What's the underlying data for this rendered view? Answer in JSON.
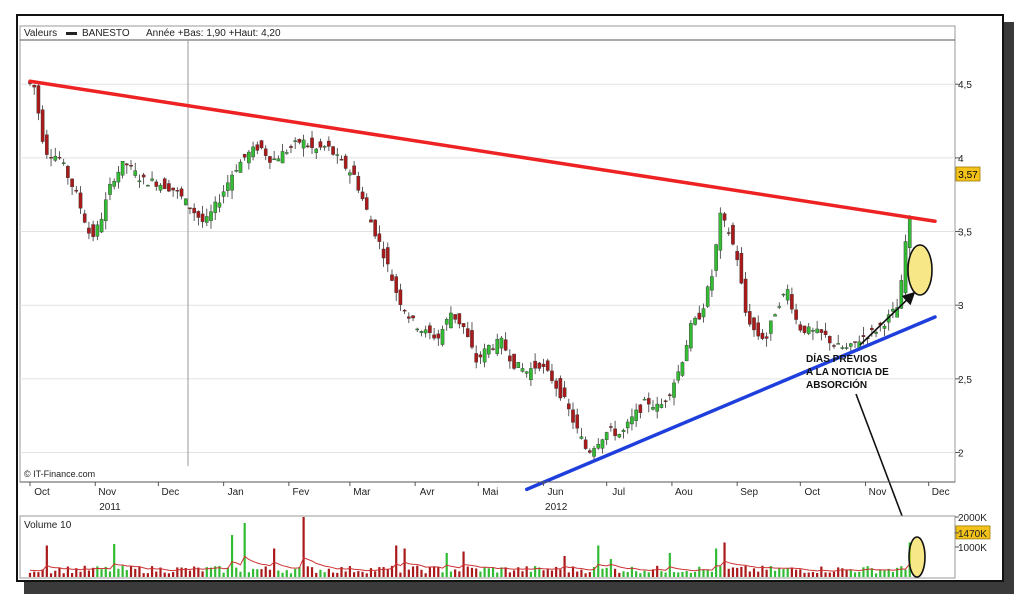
{
  "header": {
    "series_label": "Valeurs",
    "ticker": "BANESTO",
    "range_text": "Année +Bas: 1,90 +Haut: 4,20"
  },
  "credit": "© IT-Finance.com",
  "last_price_label": "3,57",
  "annotation": {
    "lines": [
      "DÍAS PREVIOS",
      "A LA NOTICIA DE",
      "ABSORCIÓN"
    ]
  },
  "volume_panel": {
    "title": "Volume 10",
    "axis_labels": [
      "2000K",
      "1470K",
      "1000K"
    ]
  },
  "colors": {
    "up": "#33bb33",
    "down": "#aa1a1a",
    "resistance": "#ee2222",
    "support": "#1f3fdd",
    "highlight": "#f2c21b",
    "volume_avg": "#cc3333",
    "grid": "#e2e2e2"
  },
  "chart_data": {
    "type": "candlestick",
    "title": "",
    "price_axis": {
      "ylim": [
        1.8,
        4.8
      ],
      "ticks": [
        "2",
        "2,5",
        "3",
        "3,5",
        "4",
        "4,5"
      ]
    },
    "month_labels": [
      "Oct",
      "Nov",
      "Dec",
      "Jan",
      "Fev",
      "Mar",
      "Avr",
      "Mai",
      "Jun",
      "Jul",
      "Aou",
      "Sep",
      "Oct",
      "Nov",
      "Dec"
    ],
    "year_labels": [
      "2011",
      "2012"
    ],
    "price_path": [
      [
        0,
        4.52
      ],
      [
        4,
        4.48
      ],
      [
        9,
        4.05
      ],
      [
        16,
        4.0
      ],
      [
        24,
        3.75
      ],
      [
        31,
        3.45
      ],
      [
        35,
        3.55
      ],
      [
        41,
        3.85
      ],
      [
        47,
        3.97
      ],
      [
        55,
        3.85
      ],
      [
        63,
        3.83
      ],
      [
        71,
        3.78
      ],
      [
        79,
        3.65
      ],
      [
        85,
        3.55
      ],
      [
        92,
        3.72
      ],
      [
        99,
        3.92
      ],
      [
        105,
        4.02
      ],
      [
        111,
        4.08
      ],
      [
        117,
        3.98
      ],
      [
        124,
        4.05
      ],
      [
        131,
        4.12
      ],
      [
        137,
        4.05
      ],
      [
        143,
        4.08
      ],
      [
        149,
        3.98
      ],
      [
        156,
        3.88
      ],
      [
        163,
        3.6
      ],
      [
        170,
        3.35
      ],
      [
        177,
        3.05
      ],
      [
        183,
        2.9
      ],
      [
        189,
        2.82
      ],
      [
        196,
        2.78
      ],
      [
        202,
        2.95
      ],
      [
        208,
        2.85
      ],
      [
        214,
        2.62
      ],
      [
        220,
        2.72
      ],
      [
        226,
        2.75
      ],
      [
        232,
        2.6
      ],
      [
        238,
        2.55
      ],
      [
        244,
        2.6
      ],
      [
        250,
        2.5
      ],
      [
        256,
        2.35
      ],
      [
        262,
        2.15
      ],
      [
        267,
        2.0
      ],
      [
        272,
        2.08
      ],
      [
        277,
        2.15
      ],
      [
        283,
        2.12
      ],
      [
        289,
        2.25
      ],
      [
        295,
        2.35
      ],
      [
        301,
        2.3
      ],
      [
        306,
        2.42
      ],
      [
        311,
        2.58
      ],
      [
        316,
        2.85
      ],
      [
        321,
        2.95
      ],
      [
        326,
        3.2
      ],
      [
        330,
        3.6
      ],
      [
        334,
        3.5
      ],
      [
        338,
        3.32
      ],
      [
        342,
        2.95
      ],
      [
        347,
        2.8
      ],
      [
        352,
        2.78
      ],
      [
        357,
        3.0
      ],
      [
        362,
        3.1
      ],
      [
        367,
        2.85
      ],
      [
        373,
        2.82
      ],
      [
        379,
        2.8
      ],
      [
        385,
        2.72
      ],
      [
        391,
        2.7
      ],
      [
        397,
        2.78
      ],
      [
        403,
        2.82
      ],
      [
        409,
        2.9
      ],
      [
        415,
        3.0
      ],
      [
        419,
        3.57
      ]
    ],
    "trendlines": [
      {
        "name": "resistance",
        "from": [
          "Oct 2011",
          4.52
        ],
        "to": [
          "Dec 2012",
          3.57
        ]
      },
      {
        "name": "support",
        "from": [
          "Jun 2012",
          1.75
        ],
        "to": [
          "Dec 2012",
          2.92
        ]
      }
    ],
    "volume_axis": {
      "ticks": [
        1000,
        1470,
        2000
      ],
      "unit": "K"
    },
    "volume_spikes": [
      {
        "day": 9,
        "value": 1050
      },
      {
        "day": 41,
        "value": 1100
      },
      {
        "day": 96,
        "value": 1400
      },
      {
        "day": 102,
        "value": 1800
      },
      {
        "day": 117,
        "value": 950
      },
      {
        "day": 131,
        "value": 2000
      },
      {
        "day": 175,
        "value": 1050
      },
      {
        "day": 179,
        "value": 950
      },
      {
        "day": 198,
        "value": 800
      },
      {
        "day": 207,
        "value": 850
      },
      {
        "day": 255,
        "value": 700
      },
      {
        "day": 271,
        "value": 1050
      },
      {
        "day": 277,
        "value": 600
      },
      {
        "day": 304,
        "value": 800
      },
      {
        "day": 326,
        "value": 950
      },
      {
        "day": 330,
        "value": 1150
      },
      {
        "day": 418,
        "value": 1150
      },
      {
        "day": 420,
        "value": 1470
      }
    ]
  }
}
